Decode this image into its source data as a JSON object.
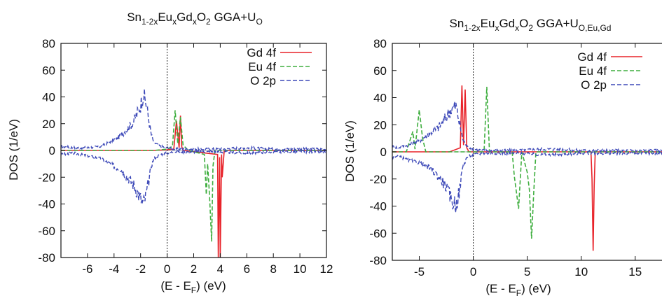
{
  "chart_data": [
    {
      "type": "line",
      "title": {
        "base": "Sn",
        "sub1": "1-2x",
        "eu": "Eu",
        "sub2": "x",
        "gd": "Gd",
        "sub3": "x",
        "o": "O",
        "sub4": "2",
        "method": " GGA+U",
        "sub5": "O"
      },
      "xlabel": {
        "pre": "(E - E",
        "sub": "F",
        "post": ") (eV)"
      },
      "ylabel": "DOS (1/eV)",
      "xlim": [
        -8,
        12
      ],
      "ylim": [
        -80,
        80
      ],
      "xticks": [
        -6,
        -4,
        -2,
        0,
        2,
        4,
        6,
        8,
        10,
        12
      ],
      "xtick_labels": [
        "-6",
        "-4",
        "-2",
        "0",
        "2",
        "4",
        "6",
        "8",
        "10",
        "12"
      ],
      "yticks": [
        80,
        60,
        40,
        20,
        0,
        -20,
        -40,
        -60,
        -80
      ],
      "ytick_labels": [
        "80",
        "60",
        "40",
        "20",
        "0",
        "-20",
        "-40",
        "-60",
        "-80"
      ],
      "fermi_level": 0,
      "legend_position": "top-right",
      "series": [
        {
          "name": "Gd 4f",
          "color": "#e8232a",
          "dash": "solid",
          "x": [
            -1.0,
            0.0,
            0.5,
            0.7,
            0.9,
            1.0,
            1.1,
            1.2,
            3.8,
            3.85,
            3.95,
            4.0,
            4.1,
            4.15,
            4.3
          ],
          "y": [
            0,
            0.5,
            1,
            22,
            2,
            26,
            3,
            0,
            -3,
            -80,
            -5,
            -80,
            -3,
            -20,
            0
          ]
        },
        {
          "name": "Eu 4f",
          "color": "#3fae3f",
          "dash": "dashed",
          "x": [
            -1.0,
            0.0,
            0.4,
            0.6,
            0.8,
            1.0,
            1.2,
            1.6,
            2.8,
            2.95,
            3.05,
            3.2,
            3.35,
            3.45,
            3.6
          ],
          "y": [
            0,
            1,
            3,
            30,
            5,
            25,
            4,
            0,
            -3,
            -33,
            -10,
            -35,
            -68,
            -12,
            0
          ]
        },
        {
          "name": "O 2p",
          "color": "#3d49b8",
          "dash": "dashed",
          "x": [
            -8,
            -7,
            -6,
            -5,
            -4,
            -3.5,
            -3,
            -2.5,
            -2,
            -1.8,
            -1.6,
            -1.4,
            -1.2,
            -1.0,
            -0.5,
            0,
            0.5,
            1,
            2,
            4,
            6,
            8,
            10,
            12
          ],
          "y_up": [
            3,
            2,
            2,
            3,
            8,
            11,
            16,
            22,
            34,
            42,
            36,
            24,
            12,
            6,
            3,
            2,
            1,
            1,
            1,
            1,
            2,
            1,
            1,
            1
          ],
          "y_down": [
            -3,
            -2,
            -4,
            -6,
            -12,
            -14,
            -20,
            -26,
            -36,
            -40,
            -34,
            -24,
            -12,
            -6,
            -3,
            -2,
            -1,
            -1,
            -1,
            -1,
            -2,
            -1,
            -1,
            -1
          ]
        }
      ]
    },
    {
      "type": "line",
      "title": {
        "base": "Sn",
        "sub1": "1-2x",
        "eu": "Eu",
        "sub2": "x",
        "gd": "Gd",
        "sub3": "x",
        "o": "O",
        "sub4": "2",
        "method": " GGA+U",
        "sub5": "O,Eu,Gd"
      },
      "xlabel": {
        "pre": "(E - E",
        "sub": "F",
        "post": ") (eV)"
      },
      "ylabel": "DOS (1/eV)",
      "xlim": [
        -7.5,
        18
      ],
      "ylim": [
        -80,
        80
      ],
      "xticks": [
        -5,
        0,
        5,
        10,
        15
      ],
      "xtick_labels": [
        "-5",
        "0",
        "5",
        "10",
        "15"
      ],
      "yticks": [
        80,
        60,
        40,
        20,
        0,
        -20,
        -40,
        -60,
        -80
      ],
      "ytick_labels": [
        "80",
        "60",
        "40",
        "20",
        "0",
        "-20",
        "-40",
        "-60",
        "-80"
      ],
      "fermi_level": 0,
      "legend_position": "top-right",
      "series": [
        {
          "name": "Gd 4f",
          "color": "#e8232a",
          "dash": "solid",
          "x": [
            -2.2,
            -1.2,
            -1.05,
            -0.9,
            -0.75,
            -0.6,
            -0.4,
            10.9,
            11.0,
            11.1,
            11.2,
            11.3
          ],
          "y": [
            0,
            3,
            49,
            5,
            46,
            3,
            0,
            0,
            -20,
            -73,
            -25,
            0
          ]
        },
        {
          "name": "Eu 4f",
          "color": "#3fae3f",
          "dash": "dashed",
          "x": [
            -6.2,
            -5.6,
            -5.4,
            -5.0,
            -4.7,
            -4.4,
            1.0,
            1.25,
            1.5,
            3.6,
            3.8,
            4.2,
            4.5,
            5.0,
            5.2,
            5.4,
            5.6,
            5.8
          ],
          "y": [
            0,
            15,
            2,
            31,
            10,
            0,
            0,
            48,
            0,
            0,
            -18,
            -42,
            0,
            -15,
            -28,
            -64,
            -30,
            0
          ]
        },
        {
          "name": "O 2p",
          "color": "#3d49b8",
          "dash": "dashed",
          "x": [
            -7.5,
            -7,
            -6,
            -5,
            -4,
            -3.5,
            -3,
            -2.5,
            -2,
            -1.6,
            -1.3,
            -1.0,
            -0.6,
            0,
            1,
            2,
            4,
            6,
            8,
            10,
            12,
            14,
            16,
            18
          ],
          "y_up": [
            4,
            3,
            5,
            8,
            14,
            16,
            20,
            26,
            32,
            34,
            22,
            10,
            4,
            2,
            1,
            1,
            1,
            2,
            2,
            1,
            1,
            1,
            1,
            1
          ],
          "y_down": [
            -4,
            -3,
            -6,
            -8,
            -12,
            -16,
            -20,
            -26,
            -36,
            -39,
            -30,
            -12,
            -4,
            -2,
            -1,
            -1,
            -1,
            -2,
            -2,
            -1,
            -1,
            -1,
            -1,
            -1
          ]
        }
      ]
    }
  ]
}
